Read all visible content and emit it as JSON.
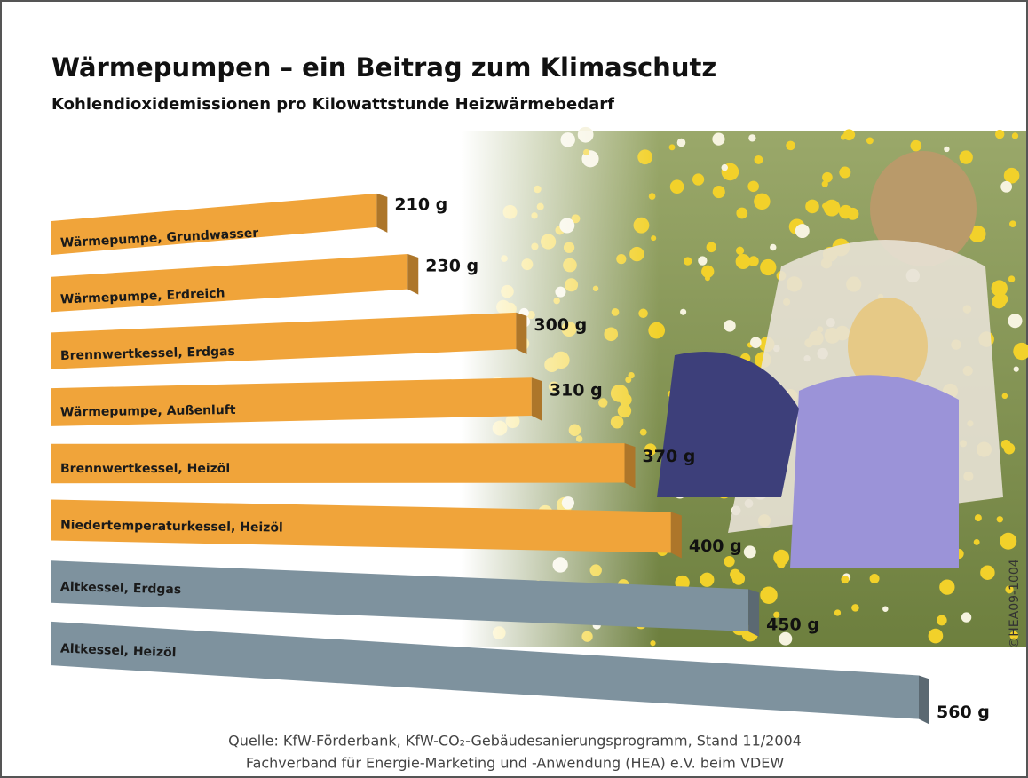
{
  "chart_data": {
    "type": "bar3d",
    "title": "Wärmepumpen – ein Beitrag zum Klimaschutz",
    "subtitle": "Kohlendioxidemissionen pro Kilowattstunde Heizwärmebedarf",
    "categories": [
      "Wärmepumpe, Grundwasser",
      "Wärmepumpe, Erdreich",
      "Brennwertkessel, Erdgas",
      "Wärmepumpe, Außenluft",
      "Brennwertkessel, Heizöl",
      "Niedertemperaturkessel, Heizöl",
      "Altkessel, Erdgas",
      "Altkessel, Heizöl"
    ],
    "values": [
      210,
      230,
      300,
      310,
      370,
      400,
      450,
      560
    ],
    "value_labels": [
      "210 g",
      "230 g",
      "300 g",
      "310 g",
      "370 g",
      "400 g",
      "450 g",
      "560 g"
    ],
    "colors": [
      "#f0a43a",
      "#f0a43a",
      "#f0a43a",
      "#f0a43a",
      "#f0a43a",
      "#f0a43a",
      "#7e929e",
      "#7e929e"
    ],
    "source": [
      "Quelle: KfW-Förderbank, KfW-CO₂-Gebäudesanierungsprogramm, Stand 11/2004",
      "Fachverband für Energie-Marketing und -Anwendung (HEA) e.V. beim VDEW"
    ],
    "copyright": "©HEA09-1004"
  }
}
